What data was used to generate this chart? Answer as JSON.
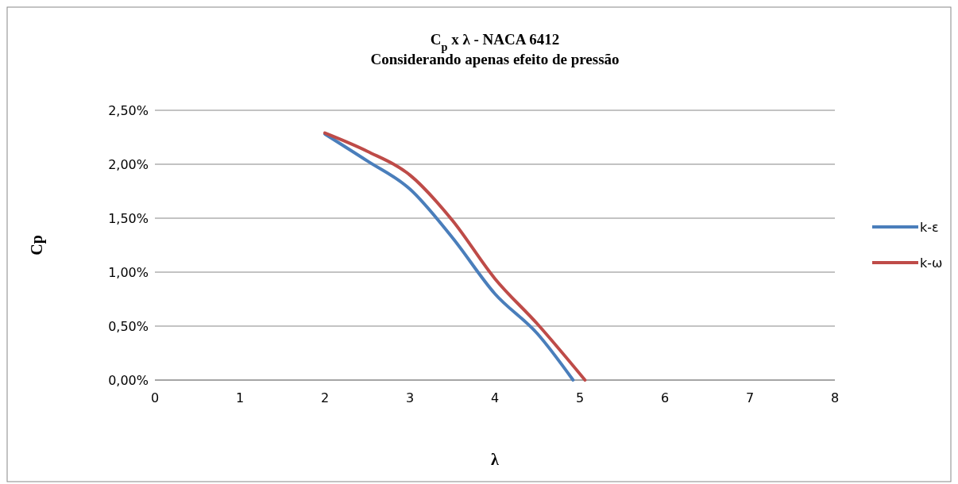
{
  "chart_data": {
    "type": "line",
    "title": "C$_{p}$ x λ - NACA 6412",
    "subtitle": "Considerando apenas efeito de pressão",
    "xlabel": "λ",
    "ylabel": "Cp",
    "xlim": [
      0,
      8
    ],
    "xticks": [
      0,
      1,
      2,
      3,
      4,
      5,
      6,
      7,
      8
    ],
    "ylim": [
      0,
      2.5
    ],
    "yticks": [
      {
        "value": 0,
        "label": "0,00%"
      },
      {
        "value": 0.5,
        "label": "0,50%"
      },
      {
        "value": 1,
        "label": "1,00%"
      },
      {
        "value": 1.5,
        "label": "1,50%"
      },
      {
        "value": 2,
        "label": "2,00%"
      },
      {
        "value": 2.5,
        "label": "2,50%"
      }
    ],
    "grid": "y",
    "legend": "right",
    "marker": "none",
    "line_style": "solid",
    "series": [
      {
        "name": "k-ε",
        "color": "#4a7ebb",
        "x": [
          2,
          2.5,
          3,
          3.5,
          4,
          4.5,
          4.92
        ],
        "values": [
          2.28,
          2.03,
          1.77,
          1.32,
          0.8,
          0.43,
          0
        ]
      },
      {
        "name": "k-ω",
        "color": "#be4b48",
        "x": [
          2,
          2.5,
          3,
          3.5,
          4,
          4.5,
          5.06
        ],
        "values": [
          2.29,
          2.12,
          1.9,
          1.48,
          0.94,
          0.52,
          0
        ]
      }
    ]
  }
}
